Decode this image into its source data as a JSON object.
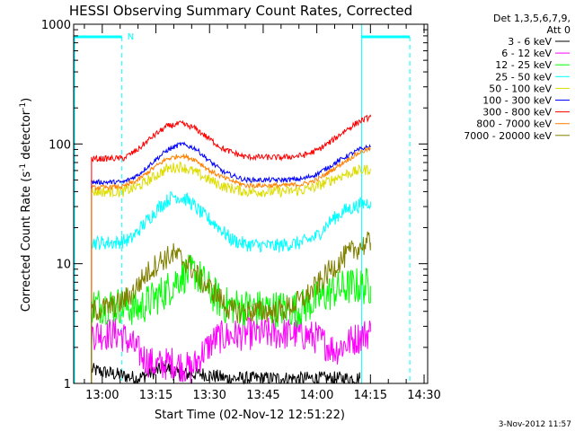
{
  "chart_data": {
    "type": "line",
    "title": "HESSI Observing Summary Count Rates, Corrected",
    "xlabel": "Start Time (02-Nov-12 12:51:22)",
    "ylabel_main": "Corrected Count Rate (s",
    "ylabel_sup1": "-1",
    "ylabel_mid": " detector",
    "ylabel_sup2": "-1",
    "ylabel_end": ")",
    "y_scale": "log",
    "ylim": [
      1,
      1000
    ],
    "xlim_minutes": [
      -8,
      31
    ],
    "x_ticks": [
      {
        "label": "13:00",
        "minutes": 0
      },
      {
        "label": "13:15",
        "minutes": 15
      },
      {
        "label": "13:30",
        "minutes": 30
      },
      {
        "label": "13:45",
        "minutes": 45
      },
      {
        "label": "14:00",
        "minutes": 60
      },
      {
        "label": "14:15",
        "minutes": 75
      },
      {
        "label": "14:30",
        "minutes": 90
      }
    ],
    "y_ticks": [
      {
        "label": "1",
        "value": 1
      },
      {
        "label": "10",
        "value": 10
      },
      {
        "label": "100",
        "value": 100
      },
      {
        "label": "1000",
        "value": 1000
      }
    ],
    "legend_header": [
      "Det 1,3,5,6,7,9,",
      "Att 0"
    ],
    "legend_placement": "right",
    "series": [
      {
        "name": "3 - 6 keV",
        "color": "#000000",
        "points": [
          [
            -3,
            1.3
          ],
          [
            10,
            1.1
          ],
          [
            16,
            1.3
          ],
          [
            18,
            1.4
          ],
          [
            20,
            1.2
          ],
          [
            28,
            1.2
          ],
          [
            35,
            1.1
          ],
          [
            60,
            1.1
          ],
          [
            72,
            1.1
          ]
        ]
      },
      {
        "name": "6 - 12 keV",
        "color": "#ff00ff",
        "points": [
          [
            -3,
            2.6
          ],
          [
            5,
            2.6
          ],
          [
            9,
            2.0
          ],
          [
            12,
            1.6
          ],
          [
            15,
            1.4
          ],
          [
            20,
            1.5
          ],
          [
            25,
            1.3
          ],
          [
            28,
            1.8
          ],
          [
            32,
            2.4
          ],
          [
            40,
            2.6
          ],
          [
            55,
            2.6
          ],
          [
            60,
            2.4
          ],
          [
            65,
            1.9
          ],
          [
            70,
            2.3
          ],
          [
            75,
            2.7
          ]
        ]
      },
      {
        "name": "12 - 25 keV",
        "color": "#00ff00",
        "points": [
          [
            -3,
            4.5
          ],
          [
            5,
            4.5
          ],
          [
            10,
            4.2
          ],
          [
            14,
            5
          ],
          [
            18,
            6
          ],
          [
            22,
            8
          ],
          [
            26,
            8.5
          ],
          [
            30,
            6
          ],
          [
            34,
            4.5
          ],
          [
            45,
            4.2
          ],
          [
            55,
            4.2
          ],
          [
            60,
            5
          ],
          [
            65,
            6
          ],
          [
            70,
            6.5
          ],
          [
            75,
            6.5
          ]
        ]
      },
      {
        "name": "25 - 50 keV",
        "color": "#00ffff",
        "points": [
          [
            -3,
            15
          ],
          [
            4,
            15
          ],
          [
            8,
            16
          ],
          [
            12,
            22
          ],
          [
            16,
            30
          ],
          [
            20,
            37
          ],
          [
            24,
            34
          ],
          [
            28,
            26
          ],
          [
            32,
            21
          ],
          [
            36,
            16
          ],
          [
            40,
            14.5
          ],
          [
            48,
            14
          ],
          [
            56,
            15
          ],
          [
            60,
            17
          ],
          [
            64,
            23
          ],
          [
            68,
            28
          ],
          [
            72,
            31
          ],
          [
            75,
            33
          ]
        ]
      },
      {
        "name": "50 - 100 keV",
        "color": "#dddd00",
        "points": [
          [
            -3,
            40
          ],
          [
            6,
            40
          ],
          [
            10,
            44
          ],
          [
            14,
            52
          ],
          [
            18,
            62
          ],
          [
            22,
            65
          ],
          [
            26,
            58
          ],
          [
            30,
            50
          ],
          [
            34,
            44
          ],
          [
            40,
            40
          ],
          [
            50,
            40
          ],
          [
            56,
            41
          ],
          [
            60,
            44
          ],
          [
            64,
            50
          ],
          [
            68,
            56
          ],
          [
            72,
            60
          ],
          [
            75,
            62
          ]
        ]
      },
      {
        "name": "100 - 300 keV",
        "color": "#0000ff",
        "points": [
          [
            -3,
            48
          ],
          [
            6,
            48
          ],
          [
            10,
            55
          ],
          [
            14,
            70
          ],
          [
            18,
            88
          ],
          [
            22,
            100
          ],
          [
            26,
            92
          ],
          [
            30,
            72
          ],
          [
            34,
            58
          ],
          [
            40,
            50
          ],
          [
            50,
            50
          ],
          [
            56,
            51
          ],
          [
            60,
            56
          ],
          [
            64,
            66
          ],
          [
            68,
            78
          ],
          [
            72,
            90
          ],
          [
            75,
            95
          ]
        ]
      },
      {
        "name": "300 - 800 keV",
        "color": "#ff0000",
        "points": [
          [
            -3,
            75
          ],
          [
            6,
            76
          ],
          [
            10,
            90
          ],
          [
            14,
            115
          ],
          [
            18,
            140
          ],
          [
            22,
            148
          ],
          [
            26,
            135
          ],
          [
            30,
            110
          ],
          [
            34,
            90
          ],
          [
            40,
            78
          ],
          [
            50,
            77
          ],
          [
            56,
            80
          ],
          [
            60,
            88
          ],
          [
            64,
            105
          ],
          [
            68,
            130
          ],
          [
            72,
            155
          ],
          [
            75,
            168
          ]
        ]
      },
      {
        "name": "800 - 7000 keV",
        "color": "#ff8000",
        "points": [
          [
            -3,
            43
          ],
          [
            6,
            44
          ],
          [
            10,
            50
          ],
          [
            14,
            62
          ],
          [
            18,
            75
          ],
          [
            22,
            80
          ],
          [
            26,
            74
          ],
          [
            30,
            60
          ],
          [
            34,
            52
          ],
          [
            40,
            45
          ],
          [
            50,
            45
          ],
          [
            56,
            46
          ],
          [
            60,
            50
          ],
          [
            64,
            60
          ],
          [
            68,
            72
          ],
          [
            72,
            85
          ],
          [
            75,
            92
          ]
        ]
      },
      {
        "name": "7000 - 20000 keV",
        "color": "#808000",
        "points": [
          [
            -3,
            4
          ],
          [
            4,
            4.5
          ],
          [
            8,
            5.5
          ],
          [
            12,
            8
          ],
          [
            16,
            10.5
          ],
          [
            20,
            12
          ],
          [
            24,
            10
          ],
          [
            28,
            7
          ],
          [
            32,
            5.5
          ],
          [
            36,
            4
          ],
          [
            50,
            4
          ],
          [
            56,
            5
          ],
          [
            60,
            6.5
          ],
          [
            64,
            9
          ],
          [
            68,
            11.5
          ],
          [
            72,
            14
          ],
          [
            75,
            15
          ]
        ]
      }
    ],
    "annotations": {
      "n_marker": "N",
      "bars": [
        {
          "color": "#00ffff",
          "from_min": -8,
          "to_min": 5.5
        },
        {
          "color": "#00ffff",
          "from_min": 72.5,
          "to_min": 86
        }
      ],
      "solid_vlines": [
        {
          "color": "#00ffff",
          "at_min": 72.5
        }
      ],
      "dashed_vlines": [
        {
          "color": "#00ffff",
          "at_min": 5.5
        },
        {
          "color": "#00ffff",
          "at_min": 86
        }
      ]
    },
    "grid": false
  },
  "timestamp": "3-Nov-2012 11:57"
}
